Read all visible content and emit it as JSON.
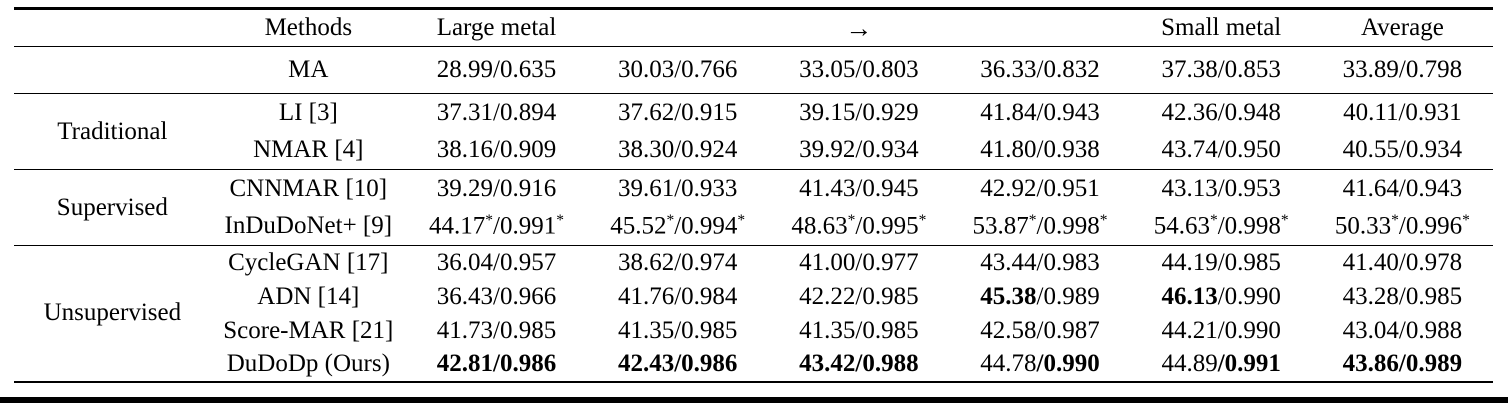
{
  "page": {
    "background": "#ffffff",
    "text_color": "#000000",
    "rule_color": "#000000"
  },
  "table": {
    "columns": [
      "",
      "Methods",
      "Large metal",
      "",
      "→",
      "",
      "Small metal",
      "Average"
    ],
    "arrow_symbol": "→",
    "groups": [
      {
        "label": "",
        "rows": [
          {
            "method": "MA",
            "cells": [
              [
                {
                  "t": "28.99/0.635"
                }
              ],
              [
                {
                  "t": "30.03/0.766"
                }
              ],
              [
                {
                  "t": "33.05/0.803"
                }
              ],
              [
                {
                  "t": "36.33/0.832"
                }
              ],
              [
                {
                  "t": "37.38/0.853"
                }
              ],
              [
                {
                  "t": "33.89/0.798"
                }
              ]
            ]
          }
        ]
      },
      {
        "label": "Traditional",
        "rows": [
          {
            "method": "LI [3]",
            "cells": [
              [
                {
                  "t": "37.31/0.894"
                }
              ],
              [
                {
                  "t": "37.62/0.915"
                }
              ],
              [
                {
                  "t": "39.15/0.929"
                }
              ],
              [
                {
                  "t": "41.84/0.943"
                }
              ],
              [
                {
                  "t": "42.36/0.948"
                }
              ],
              [
                {
                  "t": "40.11/0.931"
                }
              ]
            ]
          },
          {
            "method": "NMAR [4]",
            "cells": [
              [
                {
                  "t": "38.16/0.909"
                }
              ],
              [
                {
                  "t": "38.30/0.924"
                }
              ],
              [
                {
                  "t": "39.92/0.934"
                }
              ],
              [
                {
                  "t": "41.80/0.938"
                }
              ],
              [
                {
                  "t": "43.74/0.950"
                }
              ],
              [
                {
                  "t": "40.55/0.934"
                }
              ]
            ]
          }
        ]
      },
      {
        "label": "Supervised",
        "rows": [
          {
            "method": "CNNMAR [10]",
            "cells": [
              [
                {
                  "t": "39.29/0.916"
                }
              ],
              [
                {
                  "t": "39.61/0.933"
                }
              ],
              [
                {
                  "t": "41.43/0.945"
                }
              ],
              [
                {
                  "t": "42.92/0.951"
                }
              ],
              [
                {
                  "t": "43.13/0.953"
                }
              ],
              [
                {
                  "t": "41.64/0.943"
                }
              ]
            ]
          },
          {
            "method": "InDuDoNet+ [9]",
            "cells": [
              [
                {
                  "t": "44.17"
                },
                {
                  "t": "*",
                  "s": true
                },
                {
                  "t": "/0.991"
                },
                {
                  "t": "*",
                  "s": true
                }
              ],
              [
                {
                  "t": "45.52"
                },
                {
                  "t": "*",
                  "s": true
                },
                {
                  "t": "/0.994"
                },
                {
                  "t": "*",
                  "s": true
                }
              ],
              [
                {
                  "t": "48.63"
                },
                {
                  "t": "*",
                  "s": true
                },
                {
                  "t": "/0.995"
                },
                {
                  "t": "*",
                  "s": true
                }
              ],
              [
                {
                  "t": "53.87"
                },
                {
                  "t": "*",
                  "s": true
                },
                {
                  "t": "/0.998"
                },
                {
                  "t": "*",
                  "s": true
                }
              ],
              [
                {
                  "t": "54.63"
                },
                {
                  "t": "*",
                  "s": true
                },
                {
                  "t": "/0.998"
                },
                {
                  "t": "*",
                  "s": true
                }
              ],
              [
                {
                  "t": "50.33"
                },
                {
                  "t": "*",
                  "s": true
                },
                {
                  "t": "/0.996"
                },
                {
                  "t": "*",
                  "s": true
                }
              ]
            ]
          }
        ]
      },
      {
        "label": "Unsupervised",
        "rows": [
          {
            "method": "CycleGAN [17]",
            "cells": [
              [
                {
                  "t": "36.04/0.957"
                }
              ],
              [
                {
                  "t": "38.62/0.974"
                }
              ],
              [
                {
                  "t": "41.00/0.977"
                }
              ],
              [
                {
                  "t": "43.44/0.983"
                }
              ],
              [
                {
                  "t": "44.19/0.985"
                }
              ],
              [
                {
                  "t": "41.40/0.978"
                }
              ]
            ]
          },
          {
            "method": "ADN [14]",
            "cells": [
              [
                {
                  "t": "36.43/0.966"
                }
              ],
              [
                {
                  "t": "41.76/0.984"
                }
              ],
              [
                {
                  "t": "42.22/0.985"
                }
              ],
              [
                {
                  "t": "45.38",
                  "b": true
                },
                {
                  "t": "/0.989"
                }
              ],
              [
                {
                  "t": "46.13",
                  "b": true
                },
                {
                  "t": "/0.990"
                }
              ],
              [
                {
                  "t": "43.28/0.985"
                }
              ]
            ]
          },
          {
            "method": "Score-MAR [21]",
            "cells": [
              [
                {
                  "t": "41.73/0.985"
                }
              ],
              [
                {
                  "t": "41.35/0.985"
                }
              ],
              [
                {
                  "t": "41.35/0.985"
                }
              ],
              [
                {
                  "t": "42.58/0.987"
                }
              ],
              [
                {
                  "t": "44.21/0.990"
                }
              ],
              [
                {
                  "t": "43.04/0.988"
                }
              ]
            ]
          },
          {
            "method": "DuDoDp (Ours)",
            "cells": [
              [
                {
                  "t": "42.81/0.986",
                  "b": true
                }
              ],
              [
                {
                  "t": "42.43/0.986",
                  "b": true
                }
              ],
              [
                {
                  "t": "43.42/0.988",
                  "b": true
                }
              ],
              [
                {
                  "t": "44.78"
                },
                {
                  "t": "/0.990",
                  "b": true
                }
              ],
              [
                {
                  "t": "44.89"
                },
                {
                  "t": "/0.991",
                  "b": true
                }
              ],
              [
                {
                  "t": "43.86/0.989",
                  "b": true
                }
              ]
            ]
          }
        ]
      }
    ]
  }
}
